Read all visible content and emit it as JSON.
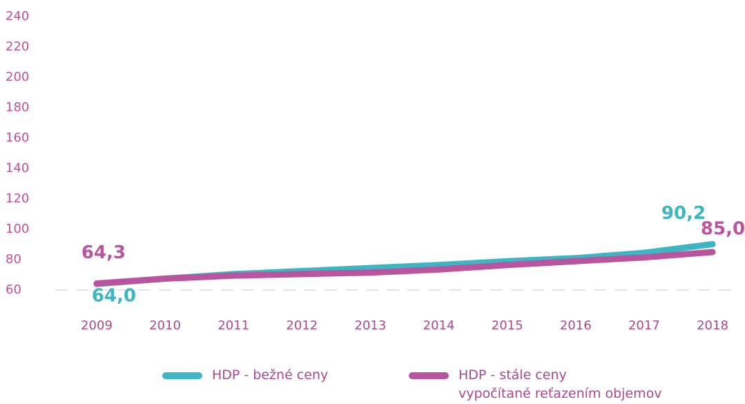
{
  "chart_data": {
    "type": "line",
    "categories": [
      "2009",
      "2010",
      "2011",
      "2012",
      "2013",
      "2014",
      "2015",
      "2016",
      "2017",
      "2018"
    ],
    "series": [
      {
        "name": "HDP - bežné ceny",
        "color": "#3db5c2",
        "values": [
          64.0,
          67.5,
          70.5,
          72.5,
          74.5,
          76.5,
          79.0,
          81.0,
          84.5,
          90.2
        ],
        "value_labels": [
          "64,0",
          null,
          null,
          null,
          null,
          null,
          null,
          null,
          null,
          "90,2"
        ]
      },
      {
        "name": "HDP - stále ceny\nvypočítané reťazením objemov",
        "color": "#b9559f",
        "values": [
          64.3,
          67.5,
          69.5,
          70.5,
          71.5,
          73.5,
          76.5,
          79.0,
          81.5,
          85.0
        ],
        "value_labels": [
          "64,3",
          null,
          null,
          null,
          null,
          null,
          null,
          null,
          null,
          "85,0"
        ]
      }
    ],
    "ylim": [
      60,
      240
    ],
    "yticks": [
      60,
      80,
      100,
      120,
      140,
      160,
      180,
      200,
      220,
      240
    ]
  }
}
